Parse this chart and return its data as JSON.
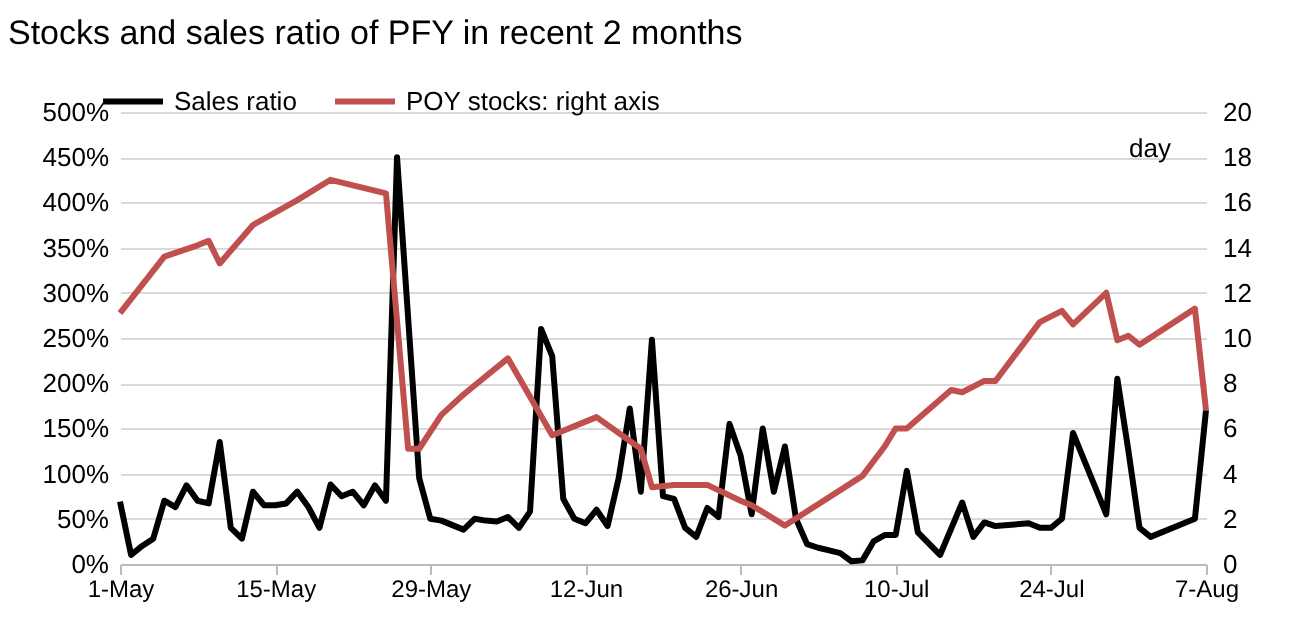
{
  "chart_data": {
    "type": "line",
    "title": "Stocks and sales ratio of PFY in recent 2 months",
    "y2label": "day",
    "series": [
      {
        "name": "Sales ratio",
        "color": "#000000",
        "x": [
          "--05-01",
          "--05-02",
          "--05-03",
          "--05-04",
          "--05-05",
          "--05-06",
          "--05-07",
          "--05-08",
          "--05-09",
          "--05-10",
          "--05-11",
          "--05-12",
          "--05-13",
          "--05-14",
          "--05-15",
          "--05-16",
          "--05-17",
          "--05-18",
          "--05-19",
          "--05-20",
          "--05-21",
          "--05-22",
          "--05-23",
          "--05-24",
          "--05-25",
          "--05-26",
          "--05-28",
          "--05-29",
          "--05-30",
          "--06-01",
          "--06-02",
          "--06-03",
          "--06-04",
          "--06-05",
          "--06-06",
          "--06-07",
          "--06-08",
          "--06-09",
          "--06-10",
          "--06-11",
          "--06-12",
          "--06-13",
          "--06-14",
          "--06-15",
          "--06-16",
          "--06-17",
          "--06-18",
          "--06-19",
          "--06-20",
          "--06-21",
          "--06-22",
          "--06-23",
          "--06-24",
          "--06-25",
          "--06-26",
          "--06-27",
          "--06-28",
          "--06-29",
          "--06-30",
          "--07-01",
          "--07-02",
          "--07-03",
          "--07-04",
          "--07-05",
          "--07-06",
          "--07-07",
          "--07-08",
          "--07-09",
          "--07-10",
          "--07-11",
          "--07-12",
          "--07-14",
          "--07-16",
          "--07-17",
          "--07-18",
          "--07-19",
          "--07-22",
          "--07-23",
          "--07-24",
          "--07-25",
          "--07-26",
          "--07-29",
          "--07-30",
          "--07-31",
          "--08-01",
          "--08-02",
          "--08-06",
          "--08-07"
        ],
        "values": [
          69,
          10,
          20,
          28,
          70,
          63,
          87,
          70,
          67,
          135,
          40,
          28,
          80,
          65,
          65,
          67,
          80,
          63,
          40,
          88,
          75,
          80,
          65,
          87,
          70,
          450,
          95,
          50,
          48,
          38,
          50,
          48,
          47,
          52,
          40,
          58,
          260,
          230,
          72,
          50,
          45,
          60,
          42,
          95,
          172,
          80,
          248,
          75,
          72,
          40,
          30,
          62,
          52,
          155,
          120,
          55,
          150,
          80,
          130,
          50,
          22,
          18,
          15,
          12,
          3,
          4,
          25,
          32,
          32,
          103,
          35,
          10,
          68,
          30,
          46,
          42,
          45,
          40,
          40,
          50,
          145,
          55,
          205,
          125,
          40,
          30,
          50,
          170
        ]
      },
      {
        "name": "POY stocks: right axis",
        "color": "#c0504d",
        "axis": "y2",
        "x": [
          "--05-01",
          "--05-05",
          "--05-08",
          "--05-09",
          "--05-10",
          "--05-13",
          "--05-17",
          "--05-20",
          "--05-25",
          "--05-27",
          "--05-28",
          "--05-30",
          "--06-01",
          "--06-05",
          "--06-09",
          "--06-13",
          "--06-17",
          "--06-18",
          "--06-20",
          "--06-23",
          "--06-26",
          "--06-27",
          "--06-30",
          "--07-07",
          "--07-09",
          "--07-10",
          "--07-11",
          "--07-15",
          "--07-16",
          "--07-18",
          "--07-19",
          "--07-23",
          "--07-25",
          "--07-26",
          "--07-29",
          "--07-30",
          "--07-31",
          "--08-01",
          "--08-06",
          "--08-07"
        ],
        "values": [
          11.1,
          13.6,
          14.1,
          14.3,
          13.3,
          15,
          16.1,
          17,
          16.4,
          5.1,
          5.1,
          6.6,
          7.5,
          9.1,
          5.7,
          6.5,
          5.1,
          3.4,
          3.5,
          3.5,
          2.8,
          2.6,
          1.7,
          3.9,
          5.2,
          6,
          6,
          7.7,
          7.6,
          8.1,
          8.1,
          10.7,
          11.2,
          10.6,
          12,
          9.9,
          10.1,
          9.7,
          11.3,
          6.8
        ]
      }
    ],
    "xlim": [
      "--05-01",
      "--08-07"
    ],
    "xticks": [
      {
        "value": "--05-01",
        "label": "1-May"
      },
      {
        "value": "--05-15",
        "label": "15-May"
      },
      {
        "value": "--05-29",
        "label": "29-May"
      },
      {
        "value": "--06-12",
        "label": "12-Jun"
      },
      {
        "value": "--06-26",
        "label": "26-Jun"
      },
      {
        "value": "--07-10",
        "label": "10-Jul"
      },
      {
        "value": "--07-24",
        "label": "24-Jul"
      },
      {
        "value": "--08-07",
        "label": "7-Aug"
      }
    ],
    "ylim": [
      0,
      500
    ],
    "yticks": [
      {
        "value": 0,
        "label": "0%"
      },
      {
        "value": 50,
        "label": "50%"
      },
      {
        "value": 100,
        "label": "100%"
      },
      {
        "value": 150,
        "label": "150%"
      },
      {
        "value": 200,
        "label": "200%"
      },
      {
        "value": 250,
        "label": "250%"
      },
      {
        "value": 300,
        "label": "300%"
      },
      {
        "value": 350,
        "label": "350%"
      },
      {
        "value": 400,
        "label": "400%"
      },
      {
        "value": 450,
        "label": "450%"
      },
      {
        "value": 500,
        "label": "500%"
      }
    ],
    "y2lim": [
      0,
      20
    ],
    "y2ticks": [
      0,
      2,
      4,
      6,
      8,
      10,
      12,
      14,
      16,
      18,
      20
    ],
    "grid": "y",
    "legend": "top",
    "marker": "none",
    "line_style": "solid"
  }
}
